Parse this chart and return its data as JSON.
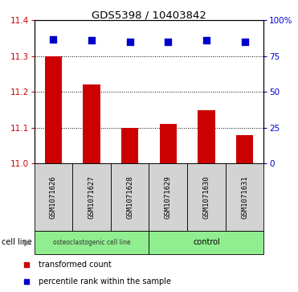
{
  "title": "GDS5398 / 10403842",
  "samples": [
    "GSM1071626",
    "GSM1071627",
    "GSM1071628",
    "GSM1071629",
    "GSM1071630",
    "GSM1071631"
  ],
  "bar_values": [
    11.3,
    11.22,
    11.1,
    11.11,
    11.15,
    11.08
  ],
  "bar_bottom": 11.0,
  "percentile_values": [
    87,
    86,
    85,
    85,
    86,
    85
  ],
  "ylim_left": [
    11.0,
    11.4
  ],
  "ylim_right": [
    0,
    100
  ],
  "yticks_left": [
    11.0,
    11.1,
    11.2,
    11.3,
    11.4
  ],
  "yticks_right": [
    0,
    25,
    50,
    75,
    100
  ],
  "ytick_labels_right": [
    "0",
    "25",
    "50",
    "75",
    "100%"
  ],
  "grid_values": [
    11.1,
    11.2,
    11.3
  ],
  "bar_color": "#CC0000",
  "dot_color": "#0000CC",
  "group1_label": "osteoclastogenic cell line",
  "group1_samples": 3,
  "group2_label": "control",
  "group2_samples": 3,
  "group_bg_color": "#90EE90",
  "label_box_color": "#D3D3D3",
  "cell_line_label": "cell line",
  "legend_bar_label": "transformed count",
  "legend_dot_label": "percentile rank within the sample",
  "bg_color": "#ffffff"
}
